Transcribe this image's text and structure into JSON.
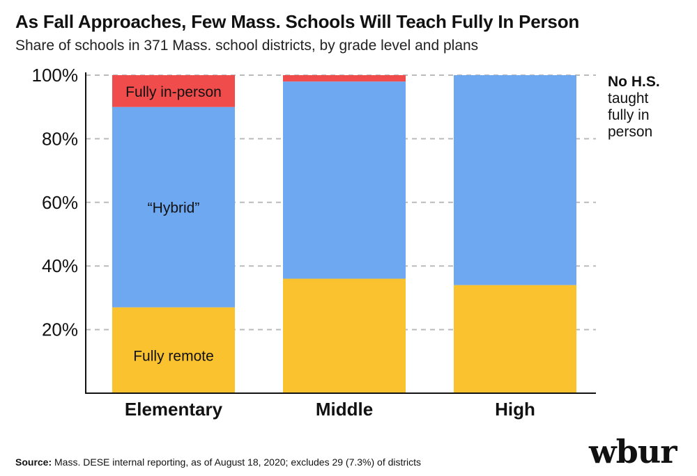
{
  "header": {
    "title": "As Fall Approaches, Few Mass. Schools Will Teach Fully In Person",
    "subtitle": "Share of schools in 371 Mass. school districts, by grade level and plans"
  },
  "side_note": {
    "bold": "No H.S.",
    "lines": [
      "taught",
      "fully in",
      "person"
    ]
  },
  "footer": {
    "source_label": "Source:",
    "source_text": " Mass. DESE internal reporting, as of August 18, 2020; excludes 29 (7.3%) of districts",
    "logo": "wbur"
  },
  "colors": {
    "fully_remote": "#F9C22E",
    "hybrid": "#6EA8F0",
    "fully_in_person": "#F04C4C",
    "gridline": "#BBBBBB",
    "axis": "#111111"
  },
  "chart_data": {
    "type": "bar",
    "stacked": true,
    "categories": [
      "Elementary",
      "Middle",
      "High"
    ],
    "series": [
      {
        "name": "Fully remote",
        "color": "#F9C22E",
        "values": [
          27,
          36,
          34
        ]
      },
      {
        "name": "“Hybrid”",
        "color": "#6EA8F0",
        "values": [
          63,
          62,
          66
        ]
      },
      {
        "name": "Fully in-person",
        "color": "#F04C4C",
        "values": [
          10,
          2,
          0
        ]
      }
    ],
    "yticks": [
      20,
      40,
      60,
      80,
      100
    ],
    "ytick_labels": [
      "20%",
      "40%",
      "60%",
      "80%",
      "100%"
    ],
    "ylim": [
      0,
      100
    ],
    "grid": true,
    "series_labels_on": "Elementary"
  }
}
